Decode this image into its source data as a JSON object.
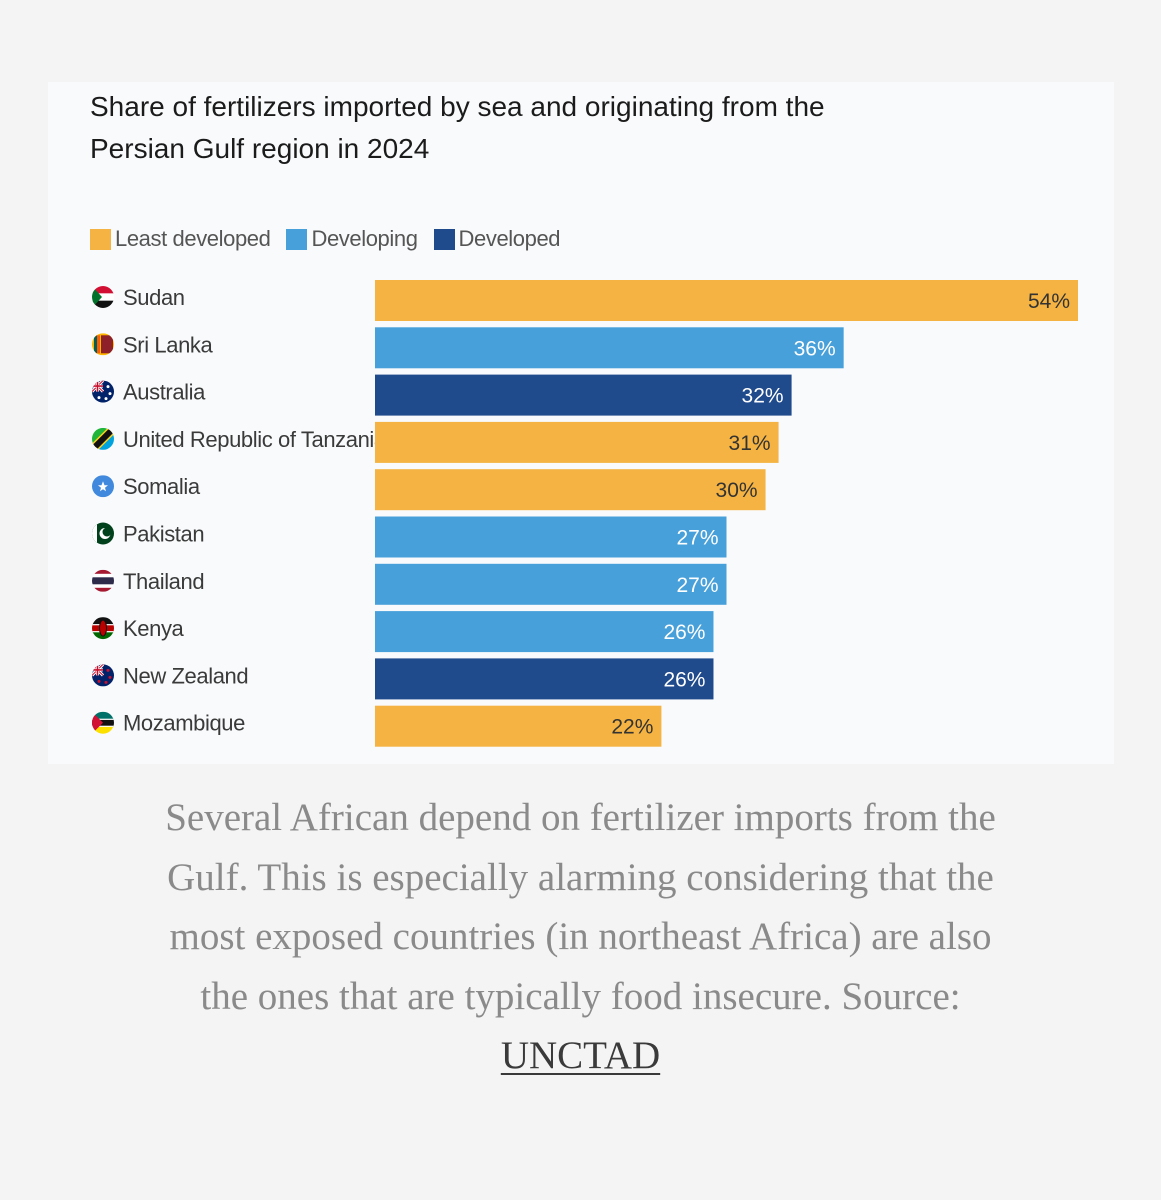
{
  "chart_data": {
    "type": "bar",
    "orientation": "horizontal",
    "title": [
      "Share of fertilizers imported by sea and originating from the",
      "Persian Gulf region in 2024"
    ],
    "legend": [
      {
        "name": "Least developed",
        "color": "#f4b342"
      },
      {
        "name": "Developing",
        "color": "#48a0da"
      },
      {
        "name": "Developed",
        "color": "#1f4a8c"
      }
    ],
    "categories": [
      "Sudan",
      "Sri Lanka",
      "Australia",
      "United Republic of Tanzania",
      "Somalia",
      "Pakistan",
      "Thailand",
      "Kenya",
      "New Zealand",
      "Mozambique"
    ],
    "groups": [
      "Least developed",
      "Developing",
      "Developed",
      "Least developed",
      "Least developed",
      "Developing",
      "Developing",
      "Developing",
      "Developed",
      "Least developed"
    ],
    "values": [
      54,
      36,
      32,
      31,
      30,
      27,
      27,
      26,
      26,
      22
    ],
    "value_labels": [
      "54%",
      "36%",
      "32%",
      "31%",
      "30%",
      "27%",
      "27%",
      "26%",
      "26%",
      "22%"
    ],
    "flag_icons": [
      "sudan-flag-icon",
      "sri-lanka-flag-icon",
      "australia-flag-icon",
      "tanzania-flag-icon",
      "somalia-flag-icon",
      "pakistan-flag-icon",
      "thailand-flag-icon",
      "kenya-flag-icon",
      "new-zealand-flag-icon",
      "mozambique-flag-icon"
    ],
    "xlim": [
      0,
      54
    ],
    "grid": false
  },
  "caption": {
    "text": "Several African depend on fertilizer imports from the Gulf. This is especially alarming considering that the most exposed countries (in northeast Africa) are also the ones that are typically food insecure. Source: ",
    "link_label": "UNCTAD"
  }
}
